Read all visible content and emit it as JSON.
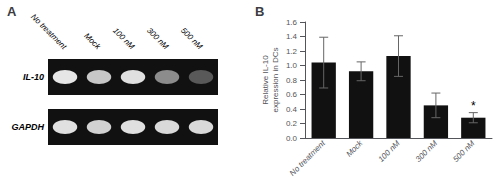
{
  "chart_data": [
    {
      "type": "heatmap",
      "title": "A",
      "categories": [
        "No treatment",
        "Mock",
        "100 nM",
        "300 nM",
        "500 nM"
      ],
      "rows": [
        "IL-10",
        "GAPDH"
      ],
      "values": [
        [
          0.9,
          0.78,
          0.88,
          0.55,
          0.35
        ],
        [
          0.88,
          0.82,
          0.88,
          0.85,
          0.85
        ]
      ]
    },
    {
      "type": "bar",
      "title": "B",
      "categories": [
        "No treatment",
        "Mock",
        "100 nM",
        "300 nM",
        "500 nM"
      ],
      "values": [
        1.04,
        0.92,
        1.13,
        0.45,
        0.28
      ],
      "errors": [
        0.35,
        0.13,
        0.28,
        0.17,
        0.07
      ],
      "color": "#111111",
      "ylabel": "Relative IL-10\nexpression in DCs",
      "ylim": [
        0,
        1.6
      ],
      "yticks": [
        {
          "value": 0,
          "label": "0.0"
        },
        0.2,
        0.4,
        0.6,
        0.8,
        {
          "value": 1.0,
          "label": "1.0"
        },
        1.2,
        1.4,
        1.6
      ],
      "annotations": [
        {
          "category": "500 nM",
          "text": "*"
        }
      ],
      "grid": false
    }
  ]
}
